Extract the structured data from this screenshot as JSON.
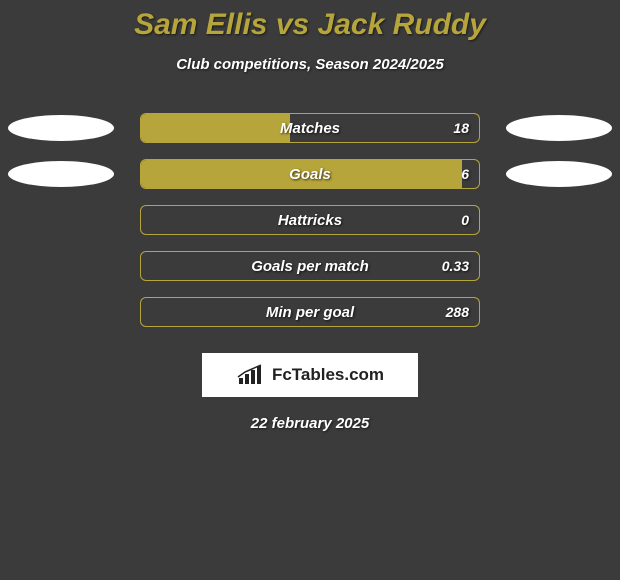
{
  "title": "Sam Ellis vs Jack Ruddy",
  "subtitle": "Club competitions, Season 2024/2025",
  "date": "22 february 2025",
  "logo_text": "FcTables.com",
  "colors": {
    "background": "#3b3b3b",
    "accent": "#b6a53a",
    "text": "#ffffff",
    "ellipse": "#ffffff",
    "logo_bg": "#ffffff"
  },
  "rows": [
    {
      "label": "Matches",
      "value": "18",
      "fill_pct": 44,
      "show_ellipses": true
    },
    {
      "label": "Goals",
      "value": "6",
      "fill_pct": 95,
      "show_ellipses": true
    },
    {
      "label": "Hattricks",
      "value": "0",
      "fill_pct": 0,
      "show_ellipses": false
    },
    {
      "label": "Goals per match",
      "value": "0.33",
      "fill_pct": 0,
      "show_ellipses": false
    },
    {
      "label": "Min per goal",
      "value": "288",
      "fill_pct": 0,
      "show_ellipses": false
    }
  ]
}
